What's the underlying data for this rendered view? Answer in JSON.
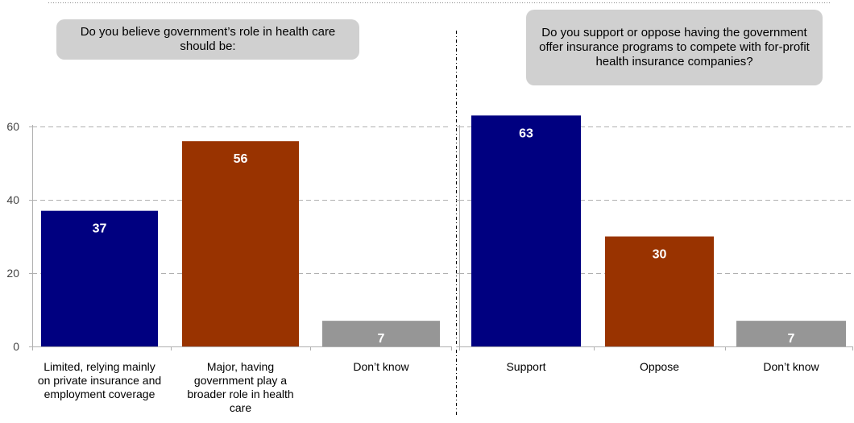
{
  "chart_data": [
    {
      "type": "bar",
      "title": "Do you believe government’s role in health care should be:",
      "categories": [
        "Limited, relying mainly on private insurance and employment coverage",
        "Major, having government play a broader role in health care",
        "Don’t know"
      ],
      "values": [
        37,
        56,
        7
      ],
      "colors": [
        "#000080",
        "#993300",
        "#969696"
      ],
      "ylim": [
        0,
        60
      ],
      "yticks": [
        0,
        20,
        40,
        60
      ],
      "grid": true
    },
    {
      "type": "bar",
      "title": "Do you support or oppose having the government offer insurance programs to compete with for-profit health insurance companies?",
      "categories": [
        "Support",
        "Oppose",
        "Don’t know"
      ],
      "values": [
        63,
        30,
        7
      ],
      "colors": [
        "#000080",
        "#993300",
        "#969696"
      ],
      "ylim": [
        0,
        60
      ],
      "yticks": [
        0,
        20,
        40,
        60
      ],
      "grid": true
    }
  ]
}
